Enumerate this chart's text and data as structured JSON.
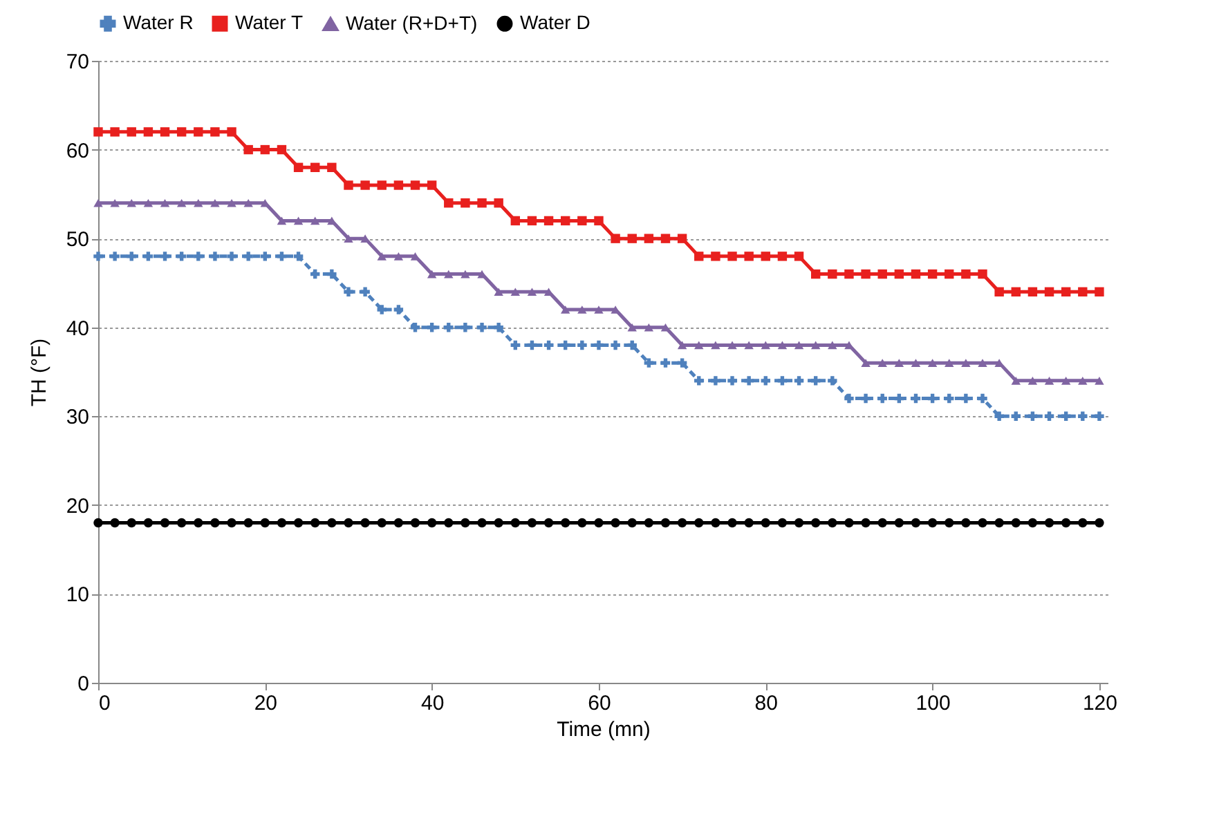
{
  "chart_data": {
    "type": "line",
    "xlabel": "Time (mn)",
    "ylabel": "TH (°F)",
    "x": [
      0,
      2,
      4,
      6,
      8,
      10,
      12,
      14,
      16,
      18,
      20,
      22,
      24,
      26,
      28,
      30,
      32,
      34,
      36,
      38,
      40,
      42,
      44,
      46,
      48,
      50,
      52,
      54,
      56,
      58,
      60,
      62,
      64,
      66,
      68,
      70,
      72,
      74,
      76,
      78,
      80,
      82,
      84,
      86,
      88,
      90,
      92,
      94,
      96,
      98,
      100,
      102,
      104,
      106,
      108,
      110,
      112,
      114,
      116,
      118,
      120
    ],
    "series": [
      {
        "name": "Water R",
        "color": "#4f81bd",
        "marker": "cross",
        "line_style": "dashed",
        "values": [
          48,
          48,
          48,
          48,
          48,
          48,
          48,
          48,
          48,
          48,
          48,
          48,
          48,
          46,
          46,
          44,
          44,
          42,
          42,
          40,
          40,
          40,
          40,
          40,
          40,
          38,
          38,
          38,
          38,
          38,
          38,
          38,
          38,
          36,
          36,
          36,
          34,
          34,
          34,
          34,
          34,
          34,
          34,
          34,
          34,
          32,
          32,
          32,
          32,
          32,
          32,
          32,
          32,
          32,
          30,
          30,
          30,
          30,
          30,
          30,
          30
        ]
      },
      {
        "name": "Water T",
        "color": "#e8201e",
        "marker": "square",
        "line_style": "solid",
        "values": [
          62,
          62,
          62,
          62,
          62,
          62,
          62,
          62,
          62,
          60,
          60,
          60,
          58,
          58,
          58,
          56,
          56,
          56,
          56,
          56,
          56,
          54,
          54,
          54,
          54,
          52,
          52,
          52,
          52,
          52,
          52,
          50,
          50,
          50,
          50,
          50,
          48,
          48,
          48,
          48,
          48,
          48,
          48,
          46,
          46,
          46,
          46,
          46,
          46,
          46,
          46,
          46,
          46,
          46,
          44,
          44,
          44,
          44,
          44,
          44,
          44
        ]
      },
      {
        "name": "Water (R+D+T)",
        "color": "#8064a2",
        "marker": "triangle",
        "line_style": "solid",
        "values": [
          54,
          54,
          54,
          54,
          54,
          54,
          54,
          54,
          54,
          54,
          54,
          52,
          52,
          52,
          52,
          50,
          50,
          48,
          48,
          48,
          46,
          46,
          46,
          46,
          44,
          44,
          44,
          44,
          42,
          42,
          42,
          42,
          40,
          40,
          40,
          38,
          38,
          38,
          38,
          38,
          38,
          38,
          38,
          38,
          38,
          38,
          36,
          36,
          36,
          36,
          36,
          36,
          36,
          36,
          36,
          34,
          34,
          34,
          34,
          34,
          34
        ]
      },
      {
        "name": "Water D",
        "color": "#000000",
        "marker": "circle",
        "line_style": "solid",
        "values": [
          18,
          18,
          18,
          18,
          18,
          18,
          18,
          18,
          18,
          18,
          18,
          18,
          18,
          18,
          18,
          18,
          18,
          18,
          18,
          18,
          18,
          18,
          18,
          18,
          18,
          18,
          18,
          18,
          18,
          18,
          18,
          18,
          18,
          18,
          18,
          18,
          18,
          18,
          18,
          18,
          18,
          18,
          18,
          18,
          18,
          18,
          18,
          18,
          18,
          18,
          18,
          18,
          18,
          18,
          18,
          18,
          18,
          18,
          18,
          18,
          18
        ]
      }
    ],
    "xlim": [
      0,
      121
    ],
    "xticks": [
      0,
      20,
      40,
      60,
      80,
      100,
      120
    ],
    "ylim": [
      0,
      70
    ],
    "yticks": [
      0,
      10,
      20,
      30,
      40,
      50,
      60,
      70
    ],
    "grid": "y",
    "legend": "top"
  }
}
